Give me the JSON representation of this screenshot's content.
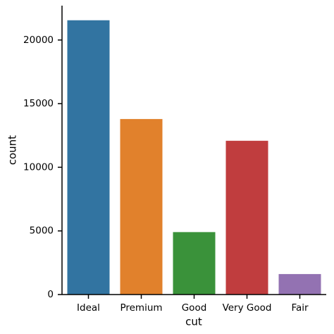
{
  "chart_data": {
    "type": "bar",
    "xlabel": "cut",
    "ylabel": "count",
    "categories": [
      "Ideal",
      "Premium",
      "Good",
      "Very Good",
      "Fair"
    ],
    "values": [
      21551,
      13791,
      4906,
      12082,
      1610
    ],
    "colors": [
      "#3274a1",
      "#e1812c",
      "#3a923a",
      "#c03d3e",
      "#9372b2"
    ],
    "ylim": [
      0,
      22700
    ],
    "yticks": [
      0,
      5000,
      10000,
      15000,
      20000
    ],
    "grid": false
  }
}
